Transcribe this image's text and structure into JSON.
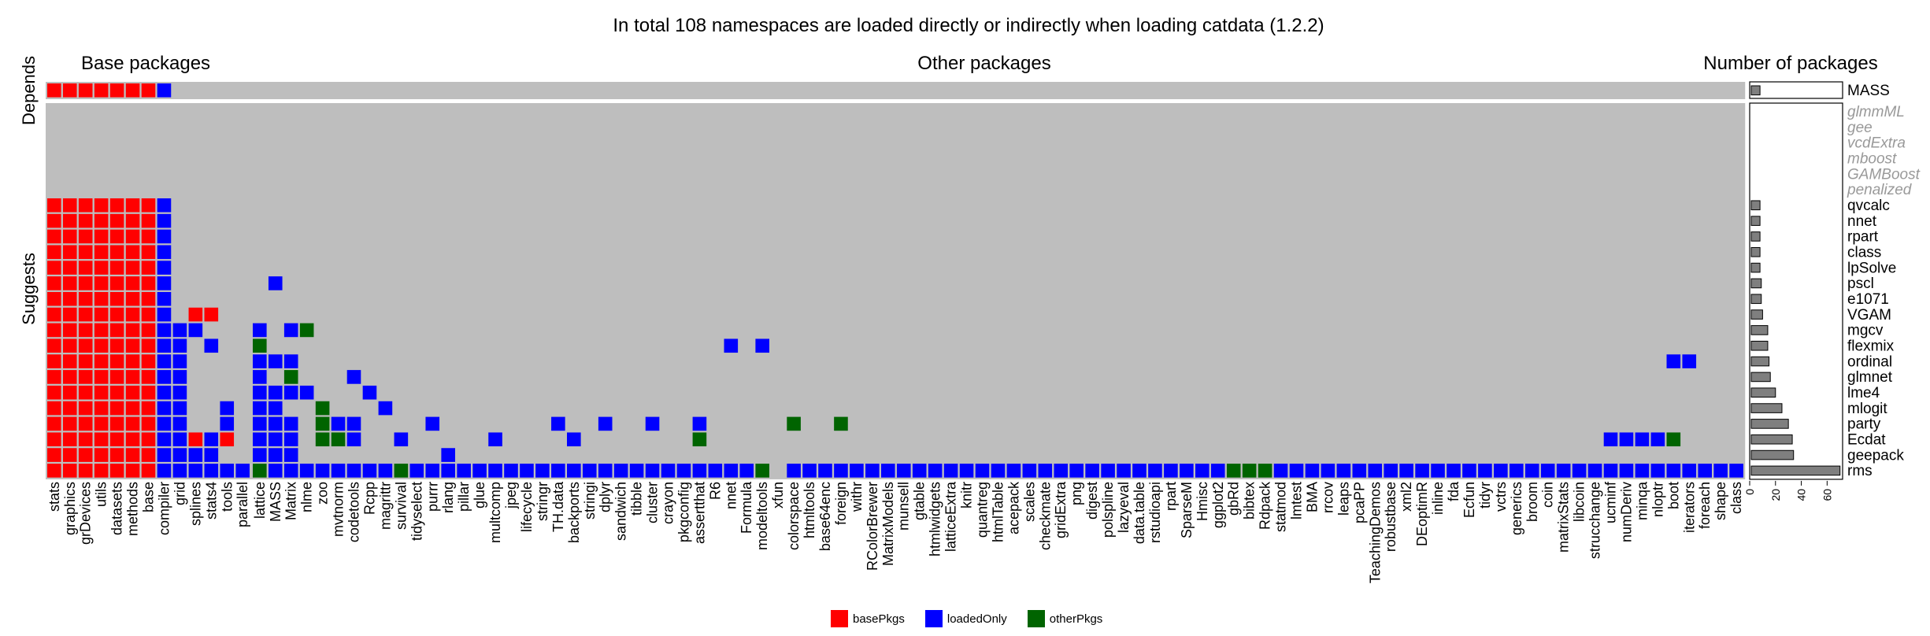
{
  "chart_data": {
    "type": "heatmap",
    "title": "In total 108 namespaces are loaded directly or indirectly when loading catdata (1.2.2)",
    "panel_titles": [
      "Base packages",
      "Other packages",
      "Number of packages"
    ],
    "row_group_labels": [
      "Depends",
      "Suggests"
    ],
    "colors": {
      "basePkgs": "#ff0000",
      "loadedOnly": "#0000ff",
      "otherPkgs": "#006400",
      "empty": "#bebebe"
    },
    "legend": {
      "position": "bottom",
      "entries": [
        "basePkgs",
        "loadedOnly",
        "otherPkgs"
      ]
    },
    "rows": [
      "MASS",
      "glmmML",
      "gee",
      "vcdExtra",
      "mboost",
      "GAMBoost",
      "penalized",
      "qvcalc",
      "nnet",
      "rpart",
      "class",
      "lpSolve",
      "pscl",
      "e1071",
      "VGAM",
      "mgcv",
      "flexmix",
      "ordinal",
      "glmnet",
      "lme4",
      "mlogit",
      "party",
      "Ecdat",
      "geepack",
      "rms"
    ],
    "unavailable_rows": [
      "glmmML",
      "gee",
      "vcdExtra",
      "mboost",
      "GAMBoost",
      "penalized"
    ],
    "base_columns": [
      "stats",
      "graphics",
      "grDevices",
      "utils",
      "datasets",
      "methods",
      "base",
      "compiler",
      "grid",
      "splines",
      "stats4",
      "tools",
      "parallel"
    ],
    "other_columns": [
      "lattice",
      "MASS",
      "Matrix",
      "nlme",
      "zoo",
      "mvtnorm",
      "codetools",
      "Rcpp",
      "magrittr",
      "survival",
      "tidyselect",
      "purrr",
      "rlang",
      "pillar",
      "glue",
      "multcomp",
      "jpeg",
      "lifecycle",
      "stringr",
      "TH.data",
      "backports",
      "stringi",
      "dplyr",
      "sandwich",
      "tibble",
      "cluster",
      "crayon",
      "pkgconfig",
      "assertthat",
      "R6",
      "nnet",
      "Formula",
      "modeltools",
      "xfun",
      "colorspace",
      "htmltools",
      "base64enc",
      "foreign",
      "withr",
      "RColorBrewer",
      "MatrixModels",
      "munsell",
      "gtable",
      "htmlwidgets",
      "latticeExtra",
      "knitr",
      "quantreg",
      "htmlTable",
      "acepack",
      "scales",
      "checkmate",
      "gridExtra",
      "png",
      "digest",
      "polspline",
      "lazyeval",
      "data.table",
      "rstudioapi",
      "rpart",
      "SparseM",
      "Hmisc",
      "ggplot2",
      "gbRd",
      "bibtex",
      "Rdpack",
      "statmod",
      "lmtest",
      "BMA",
      "rrcov",
      "leaps",
      "pcaPP",
      "TeachingDemos",
      "robustbase",
      "xml2",
      "DEoptimR",
      "inline",
      "fda",
      "Ecfun",
      "tidyr",
      "vctrs",
      "generics",
      "broom",
      "coin",
      "matrixStats",
      "libcoin",
      "strucchange",
      "ucminf",
      "numDeriv",
      "minqa",
      "nloptr",
      "boot",
      "iterators",
      "foreach",
      "shape",
      "class"
    ],
    "cells": {
      "MASS": {
        "base": "LLLLLLLb",
        "other": ""
      },
      "qvcalc": {
        "base": "LLLLLLLb",
        "other": ""
      },
      "nnet": {
        "base": "LLLLLLLb",
        "other": ""
      },
      "rpart": {
        "base": "LLLLLLLb",
        "other": ""
      },
      "class": {
        "base": "LLLLLLLb",
        "other": ""
      },
      "lpSolve": {
        "base": "LLLLLLLb",
        "other": ""
      },
      "pscl": {
        "base": "LLLLLLLb",
        "other": ".b"
      },
      "e1071": {
        "base": "LLLLLLLb",
        "other": "............................................................................................................................................................................................b"
      },
      "VGAM": {
        "base": "LLLLLLLb.LL",
        "other": ""
      },
      "mgcv": {
        "base": "LLLLLLLbbb",
        "other": "b.bg"
      },
      "flexmix": {
        "base": "LLLLLLLbb.b",
        "other": "g.............................b.b"
      },
      "ordinal": {
        "base": "LLLLLLLbb",
        "other": "bbb.......................................................................................bb"
      },
      "glmnet": {
        "base": "LLLLLLLbb",
        "other": "b.g...b..............................................................................................bbb"
      },
      "lme4": {
        "base": "LLLLLLLbb",
        "other": "bbbb...b........................................................................................bbb"
      },
      "mlogit": {
        "base": "LLLLLLLbb..b",
        "other": "bb..g...b.....................................................................................................bbbbg"
      },
      "party": {
        "base": "LLLLLLLbb..b.b",
        "other": "bbb.gbb....b.......b..b..b..b.....g..g"
      },
      "Ecdat": {
        "base": "LLLLLLLbbLbL",
        "other": "bbb.ggb..b.....b....b.......g.........................................................bbbbg"
      },
      "geepack": {
        "base": "LLLLLLLbbbb",
        "other": "bbb.........b..........................................................................................bbbbbbbbbbg"
      },
      "rms": {
        "base": "LLLLLLLbbbbbb",
        "other": "gbbbbbbbbgbbbbbbbbbbbbbbbbbbbbbbg.bbbbbbbbbbbbbbbbbbbbbbbbbbbbgggbbbbbbbbbbbbbbbbbbbbbbbbbbbbbbbbbbbb"
      }
    },
    "bar_chart": {
      "type": "bar",
      "orientation": "horizontal",
      "xlim": [
        0,
        72
      ],
      "xticks": [
        "0",
        "20",
        "40",
        "60"
      ],
      "values": {
        "MASS": 8,
        "glmmML": 0,
        "gee": 0,
        "vcdExtra": 0,
        "mboost": 0,
        "GAMBoost": 0,
        "penalized": 0,
        "qvcalc": 8,
        "nnet": 8,
        "rpart": 8,
        "class": 8,
        "lpSolve": 8,
        "pscl": 9,
        "e1071": 9,
        "VGAM": 10,
        "mgcv": 14,
        "flexmix": 14,
        "ordinal": 15,
        "glmnet": 16,
        "lme4": 20,
        "mlogit": 25,
        "party": 30,
        "Ecdat": 33,
        "geepack": 34,
        "rms": 70
      }
    }
  }
}
